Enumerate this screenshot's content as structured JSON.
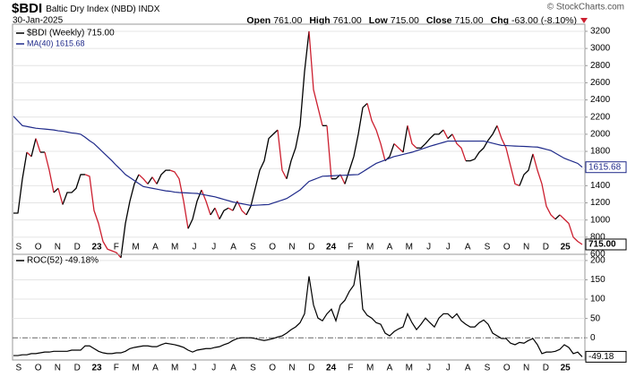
{
  "header": {
    "symbol": "$BDI",
    "name": "Baltic Dry Index (NBD) INDX",
    "date": "30-Jan-2025",
    "credit": "© StockCharts.com",
    "quote": [
      {
        "label": "Open",
        "value": "761.00"
      },
      {
        "label": "High",
        "value": "761.00"
      },
      {
        "label": "Low",
        "value": "715.00"
      },
      {
        "label": "Close",
        "value": "715.00"
      },
      {
        "label": "Chg",
        "value": "-63.00 (-8.10%)"
      }
    ]
  },
  "chart_data": [
    {
      "type": "line",
      "legend": "upper left",
      "grid": true,
      "month_labels": [
        "S",
        "O",
        "N",
        "D",
        "23",
        "F",
        "M",
        "A",
        "M",
        "J",
        "J",
        "A",
        "S",
        "O",
        "N",
        "D",
        "24",
        "F",
        "M",
        "A",
        "M",
        "J",
        "J",
        "A",
        "S",
        "O",
        "N",
        "D",
        "25"
      ],
      "ylim": [
        600,
        3283
      ],
      "yticks": [
        600,
        800,
        1000,
        1200,
        1400,
        1600,
        1800,
        2000,
        2200,
        2400,
        2600,
        2800,
        3000,
        3200
      ],
      "series": [
        {
          "name": "$BDI (Weekly) 715.00",
          "up_color": "#000000",
          "down_color": "#cc1f2f",
          "last_label": "715.00",
          "values": [
            1080,
            1080,
            1480,
            1790,
            1740,
            1950,
            1790,
            1790,
            1580,
            1320,
            1370,
            1180,
            1320,
            1320,
            1370,
            1530,
            1530,
            1510,
            1110,
            960,
            750,
            660,
            640,
            620,
            560,
            960,
            1220,
            1420,
            1530,
            1480,
            1420,
            1500,
            1420,
            1530,
            1580,
            1580,
            1560,
            1480,
            1220,
            900,
            1010,
            1220,
            1350,
            1220,
            1060,
            1140,
            1010,
            1110,
            1140,
            1110,
            1220,
            1110,
            1060,
            1160,
            1370,
            1580,
            1690,
            1950,
            2000,
            2050,
            1580,
            1480,
            1690,
            1840,
            2100,
            2730,
            3200,
            2520,
            2310,
            2100,
            2100,
            1480,
            1480,
            1530,
            1420,
            1580,
            1740,
            2000,
            2310,
            2360,
            2160,
            2050,
            1890,
            1690,
            1740,
            1890,
            1840,
            1790,
            2100,
            1890,
            1840,
            1840,
            1890,
            1950,
            2000,
            2000,
            2050,
            1950,
            2000,
            1890,
            1840,
            1690,
            1690,
            1710,
            1790,
            1840,
            1930,
            2000,
            2100,
            1950,
            1840,
            1630,
            1420,
            1400,
            1530,
            1580,
            1770,
            1580,
            1420,
            1160,
            1060,
            1010,
            1060,
            1010,
            960,
            800,
            750,
            715
          ]
        },
        {
          "name": "MA(40) 1615.68",
          "color": "#1f2a8a",
          "last_label": "1615.68",
          "values": [
            2210,
            2155,
            2100,
            2090,
            2080,
            2070,
            2065,
            2060,
            2055,
            2050,
            2040,
            2035,
            2025,
            2015,
            2010,
            2000,
            1965,
            1925,
            1890,
            1840,
            1790,
            1740,
            1690,
            1635,
            1585,
            1530,
            1495,
            1460,
            1425,
            1390,
            1380,
            1370,
            1360,
            1350,
            1340,
            1335,
            1325,
            1320,
            1318,
            1315,
            1312,
            1310,
            1300,
            1290,
            1280,
            1270,
            1255,
            1240,
            1225,
            1210,
            1200,
            1190,
            1180,
            1170,
            1172,
            1175,
            1178,
            1180,
            1198,
            1215,
            1232,
            1250,
            1283,
            1317,
            1350,
            1400,
            1450,
            1470,
            1490,
            1510,
            1512,
            1515,
            1518,
            1520,
            1522,
            1525,
            1528,
            1530,
            1562,
            1595,
            1628,
            1660,
            1680,
            1700,
            1720,
            1740,
            1752,
            1765,
            1778,
            1790,
            1808,
            1825,
            1842,
            1860,
            1875,
            1890,
            1905,
            1920,
            1920,
            1920,
            1920,
            1920,
            1920,
            1920,
            1920,
            1920,
            1908,
            1895,
            1882,
            1870,
            1868,
            1865,
            1862,
            1860,
            1858,
            1855,
            1852,
            1850,
            1837,
            1823,
            1810,
            1780,
            1750,
            1720,
            1700,
            1680,
            1660,
            1615.68
          ]
        }
      ]
    },
    {
      "type": "line",
      "legend": "upper left",
      "grid": true,
      "zero_line": true,
      "month_labels": [
        "S",
        "O",
        "N",
        "D",
        "23",
        "F",
        "M",
        "A",
        "M",
        "J",
        "J",
        "A",
        "S",
        "O",
        "N",
        "D",
        "24",
        "F",
        "M",
        "A",
        "M",
        "J",
        "J",
        "A",
        "S",
        "O",
        "N",
        "D",
        "25"
      ],
      "ylim": [
        -57.5,
        216
      ],
      "yticks": [
        0,
        50,
        100,
        150,
        200
      ],
      "series": [
        {
          "name": "ROC(52) -49.18%",
          "color": "#000000",
          "last_label": "-49.18",
          "values": [
            -46,
            -46,
            -44,
            -44,
            -41,
            -41,
            -39,
            -37,
            -37,
            -35,
            -35,
            -35,
            -35,
            -32,
            -32,
            -32,
            -21,
            -21,
            -28,
            -35,
            -39,
            -41,
            -41,
            -39,
            -39,
            -35,
            -28,
            -25,
            -23,
            -21,
            -21,
            -23,
            -23,
            -18,
            -14,
            -16,
            -18,
            -21,
            -25,
            -32,
            -37,
            -32,
            -30,
            -28,
            -28,
            -25,
            -23,
            -18,
            -14,
            -7,
            -2,
            0,
            0,
            0,
            -2,
            -5,
            -7,
            -5,
            -2,
            2,
            5,
            12,
            21,
            28,
            39,
            62,
            159,
            85,
            51,
            44,
            62,
            74,
            44,
            85,
            97,
            120,
            136,
            200,
            74,
            58,
            51,
            39,
            35,
            12,
            5,
            16,
            23,
            28,
            62,
            39,
            21,
            35,
            51,
            39,
            28,
            51,
            62,
            62,
            51,
            62,
            44,
            35,
            28,
            28,
            39,
            46,
            35,
            12,
            5,
            -2,
            -2,
            -14,
            -18,
            -12,
            -14,
            -7,
            -2,
            -18,
            -41,
            -37,
            -37,
            -35,
            -30,
            -18,
            -25,
            -41,
            -37,
            -49.18
          ]
        }
      ]
    }
  ]
}
